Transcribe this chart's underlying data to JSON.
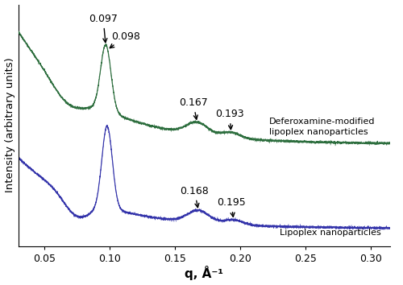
{
  "xlabel": "q, Å⁻¹",
  "ylabel": "Intensity (arbitrary units)",
  "xlim": [
    0.03,
    0.315
  ],
  "bg_color": "#ffffff",
  "green_color": "#2d6e3e",
  "blue_color": "#3333aa",
  "label_green": "Deferoxamine-modified\nlipoplex nanoparticles",
  "label_blue": "Lipoplex nanoparticles",
  "xticks": [
    0.05,
    0.1,
    0.15,
    0.2,
    0.25,
    0.3
  ]
}
